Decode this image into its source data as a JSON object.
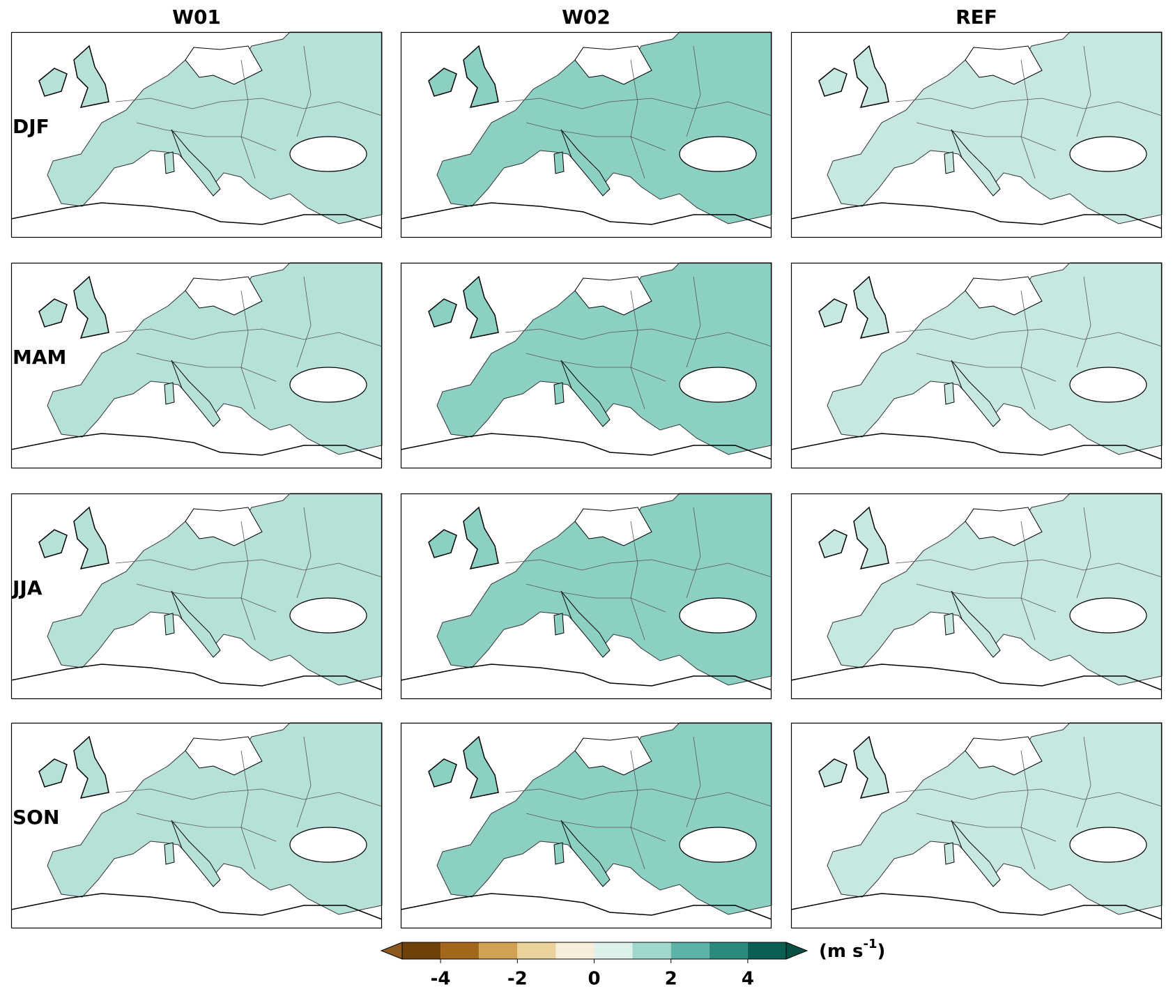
{
  "columns": [
    "W01",
    "W02",
    "REF"
  ],
  "rows": [
    "DJF",
    "MAM",
    "JJA",
    "SON"
  ],
  "colorbar": {
    "lim": [
      -5,
      5
    ],
    "ticks": [
      -4,
      -2,
      0,
      2,
      4
    ],
    "colors": [
      "#6e4109",
      "#a3671c",
      "#d1a253",
      "#ead39c",
      "#f6eedb",
      "#dcf0ec",
      "#a0d8ce",
      "#5cb4a7",
      "#2a8a7e",
      "#0d5e52"
    ],
    "extend_colors": [
      "#8c5a1e",
      "#0a4f45"
    ],
    "unit": {
      "base": "(m s",
      "sup": "-1",
      "close": ")"
    }
  }
}
